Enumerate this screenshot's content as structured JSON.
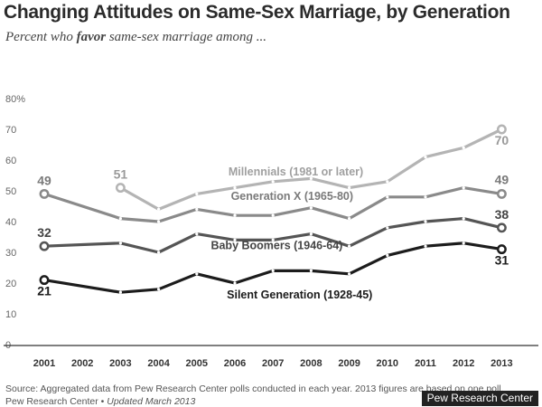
{
  "header": {
    "title": "Changing Attitudes on Same-Sex Marriage, by Generation",
    "subtitle_pre": "Percent who ",
    "subtitle_emph": "favor",
    "subtitle_post": " same-sex marriage among ..."
  },
  "footer": {
    "source": "Source: Aggregated data from Pew Research Center polls conducted in each year. 2013 figures are based on one poll.",
    "credit_org": "Pew Research Center",
    "credit_sep": " • ",
    "credit_updated": "Updated March 2013",
    "brand": "Pew Research Center"
  },
  "chart_data": {
    "type": "line",
    "title": "Changing Attitudes on Same-Sex Marriage, by Generation",
    "xlabel": "",
    "ylabel": "",
    "ylim": [
      0,
      80
    ],
    "y_ticks": [
      "0",
      "10",
      "20",
      "30",
      "40",
      "50",
      "60",
      "70",
      "80%"
    ],
    "x": [
      "2001",
      "2002",
      "2003",
      "2004",
      "2005",
      "2006",
      "2007",
      "2008",
      "2009",
      "2010",
      "2011",
      "2012",
      "2013"
    ],
    "grid": false,
    "series": [
      {
        "name": "Millennials (1981 or later)",
        "color": "#b4b4b4",
        "values": [
          null,
          null,
          51,
          44,
          49,
          51,
          53,
          54,
          51,
          53,
          61,
          64,
          70
        ],
        "start_label": "51",
        "end_label": "70"
      },
      {
        "name": "Generation X (1965-80)",
        "color": "#8a8a8a",
        "values": [
          49,
          null,
          41,
          40,
          44,
          42,
          42,
          44.5,
          41,
          48,
          48,
          51,
          49
        ],
        "start_label": "49",
        "end_label": "49"
      },
      {
        "name": "Baby Boomers (1946-64)",
        "color": "#555555",
        "values": [
          32,
          null,
          33,
          30,
          36,
          34,
          34,
          36,
          32,
          38,
          40,
          41,
          38
        ],
        "start_label": "32",
        "end_label": "38"
      },
      {
        "name": "Silent Generation (1928-45)",
        "color": "#1c1c1c",
        "values": [
          21,
          null,
          17,
          18,
          23,
          20,
          24,
          24,
          23,
          29,
          32,
          33,
          31
        ],
        "start_label": "21",
        "end_label": "31"
      }
    ]
  }
}
